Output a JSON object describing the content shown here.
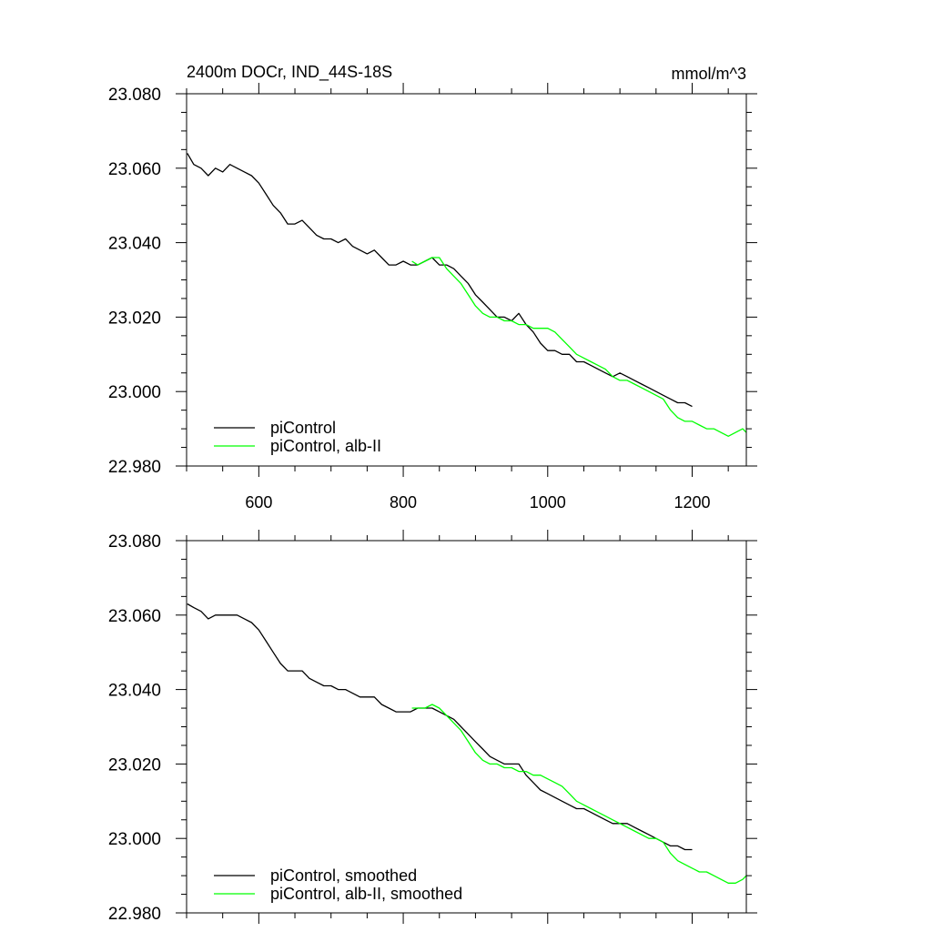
{
  "chart_data": [
    {
      "type": "line",
      "title": "2400m DOCr, IND_44S-18S",
      "units": "mmol/m^3",
      "xlim": [
        500,
        1275
      ],
      "ylim": [
        22.98,
        23.08
      ],
      "xticks": [
        600,
        800,
        1000,
        1200
      ],
      "xtick_labels": [
        "600",
        "800",
        "1000",
        "1200"
      ],
      "yticks": [
        22.98,
        23.0,
        23.02,
        23.04,
        23.06,
        23.08
      ],
      "ytick_labels": [
        "22.980",
        "23.000",
        "23.020",
        "23.040",
        "23.060",
        "23.080"
      ],
      "grid": false,
      "legend_position": "bottom-left",
      "series": [
        {
          "name": "piControl",
          "color": "#000000",
          "x": [
            501,
            510,
            520,
            530,
            540,
            550,
            560,
            570,
            580,
            590,
            600,
            610,
            620,
            630,
            640,
            650,
            660,
            670,
            680,
            690,
            700,
            710,
            720,
            730,
            740,
            750,
            760,
            770,
            780,
            790,
            800,
            810,
            820,
            830,
            840,
            850,
            860,
            870,
            880,
            890,
            900,
            910,
            920,
            930,
            940,
            950,
            960,
            970,
            980,
            990,
            1000,
            1010,
            1020,
            1030,
            1040,
            1050,
            1060,
            1070,
            1080,
            1090,
            1100,
            1110,
            1120,
            1130,
            1140,
            1150,
            1160,
            1170,
            1180,
            1190,
            1200
          ],
          "y": [
            23.064,
            23.061,
            23.06,
            23.058,
            23.06,
            23.059,
            23.061,
            23.06,
            23.059,
            23.058,
            23.056,
            23.053,
            23.05,
            23.048,
            23.045,
            23.045,
            23.046,
            23.044,
            23.042,
            23.041,
            23.041,
            23.04,
            23.041,
            23.039,
            23.038,
            23.037,
            23.038,
            23.036,
            23.034,
            23.034,
            23.035,
            23.034,
            23.034,
            23.035,
            23.036,
            23.034,
            23.034,
            23.033,
            23.031,
            23.029,
            23.026,
            23.024,
            23.022,
            23.02,
            23.02,
            23.019,
            23.021,
            23.018,
            23.016,
            23.013,
            23.011,
            23.011,
            23.01,
            23.01,
            23.008,
            23.008,
            23.007,
            23.006,
            23.005,
            23.004,
            23.005,
            23.004,
            23.003,
            23.002,
            23.001,
            23.0,
            22.999,
            22.998,
            22.997,
            22.997,
            22.996
          ]
        },
        {
          "name": "piControl, alb-II",
          "color": "#00ff00",
          "x": [
            812,
            820,
            830,
            840,
            850,
            860,
            870,
            880,
            890,
            900,
            910,
            920,
            930,
            940,
            950,
            960,
            970,
            980,
            990,
            1000,
            1010,
            1020,
            1030,
            1040,
            1050,
            1060,
            1070,
            1080,
            1090,
            1100,
            1110,
            1120,
            1130,
            1140,
            1150,
            1160,
            1170,
            1180,
            1190,
            1200,
            1210,
            1220,
            1230,
            1240,
            1250,
            1260,
            1270,
            1275
          ],
          "y": [
            23.035,
            23.034,
            23.035,
            23.036,
            23.036,
            23.033,
            23.031,
            23.029,
            23.026,
            23.023,
            23.021,
            23.02,
            23.02,
            23.019,
            23.019,
            23.018,
            23.018,
            23.017,
            23.017,
            23.017,
            23.016,
            23.014,
            23.012,
            23.01,
            23.009,
            23.008,
            23.007,
            23.006,
            23.004,
            23.003,
            23.003,
            23.002,
            23.001,
            23.0,
            22.999,
            22.998,
            22.995,
            22.993,
            22.992,
            22.992,
            22.991,
            22.99,
            22.99,
            22.989,
            22.988,
            22.989,
            22.99,
            22.989
          ]
        }
      ]
    },
    {
      "type": "line",
      "title": "",
      "xlim": [
        500,
        1275
      ],
      "ylim": [
        22.98,
        23.08
      ],
      "xticks": [
        600,
        800,
        1000,
        1200
      ],
      "xtick_labels": [],
      "yticks": [
        22.98,
        23.0,
        23.02,
        23.04,
        23.06,
        23.08
      ],
      "ytick_labels": [
        "22.980",
        "23.000",
        "23.020",
        "23.040",
        "23.060",
        "23.080"
      ],
      "grid": false,
      "legend_position": "bottom-left",
      "series": [
        {
          "name": "piControl, smoothed",
          "color": "#000000",
          "x": [
            501,
            510,
            520,
            530,
            540,
            550,
            560,
            570,
            580,
            590,
            600,
            610,
            620,
            630,
            640,
            650,
            660,
            670,
            680,
            690,
            700,
            710,
            720,
            730,
            740,
            750,
            760,
            770,
            780,
            790,
            800,
            810,
            820,
            830,
            840,
            850,
            860,
            870,
            880,
            890,
            900,
            910,
            920,
            930,
            940,
            950,
            960,
            970,
            980,
            990,
            1000,
            1010,
            1020,
            1030,
            1040,
            1050,
            1060,
            1070,
            1080,
            1090,
            1100,
            1110,
            1120,
            1130,
            1140,
            1150,
            1160,
            1170,
            1180,
            1190,
            1200
          ],
          "y": [
            23.063,
            23.062,
            23.061,
            23.059,
            23.06,
            23.06,
            23.06,
            23.06,
            23.059,
            23.058,
            23.056,
            23.053,
            23.05,
            23.047,
            23.045,
            23.045,
            23.045,
            23.043,
            23.042,
            23.041,
            23.041,
            23.04,
            23.04,
            23.039,
            23.038,
            23.038,
            23.038,
            23.036,
            23.035,
            23.034,
            23.034,
            23.034,
            23.035,
            23.035,
            23.035,
            23.034,
            23.033,
            23.032,
            23.03,
            23.028,
            23.026,
            23.024,
            23.022,
            23.021,
            23.02,
            23.02,
            23.02,
            23.017,
            23.015,
            23.013,
            23.012,
            23.011,
            23.01,
            23.009,
            23.008,
            23.008,
            23.007,
            23.006,
            23.005,
            23.004,
            23.004,
            23.004,
            23.003,
            23.002,
            23.001,
            23.0,
            22.999,
            22.998,
            22.998,
            22.997,
            22.997
          ]
        },
        {
          "name": "piControl, alb-II, smoothed",
          "color": "#00ff00",
          "x": [
            812,
            820,
            830,
            840,
            850,
            860,
            870,
            880,
            890,
            900,
            910,
            920,
            930,
            940,
            950,
            960,
            970,
            980,
            990,
            1000,
            1010,
            1020,
            1030,
            1040,
            1050,
            1060,
            1070,
            1080,
            1090,
            1100,
            1110,
            1120,
            1130,
            1140,
            1150,
            1160,
            1170,
            1180,
            1190,
            1200,
            1210,
            1220,
            1230,
            1240,
            1250,
            1260,
            1270,
            1275
          ],
          "y": [
            23.035,
            23.035,
            23.035,
            23.036,
            23.035,
            23.033,
            23.031,
            23.029,
            23.026,
            23.023,
            23.021,
            23.02,
            23.02,
            23.019,
            23.019,
            23.018,
            23.018,
            23.017,
            23.017,
            23.016,
            23.015,
            23.014,
            23.012,
            23.01,
            23.009,
            23.008,
            23.007,
            23.006,
            23.005,
            23.004,
            23.003,
            23.002,
            23.001,
            23.0,
            23.0,
            22.999,
            22.996,
            22.994,
            22.993,
            22.992,
            22.991,
            22.991,
            22.99,
            22.989,
            22.988,
            22.988,
            22.989,
            22.99
          ]
        }
      ]
    }
  ]
}
